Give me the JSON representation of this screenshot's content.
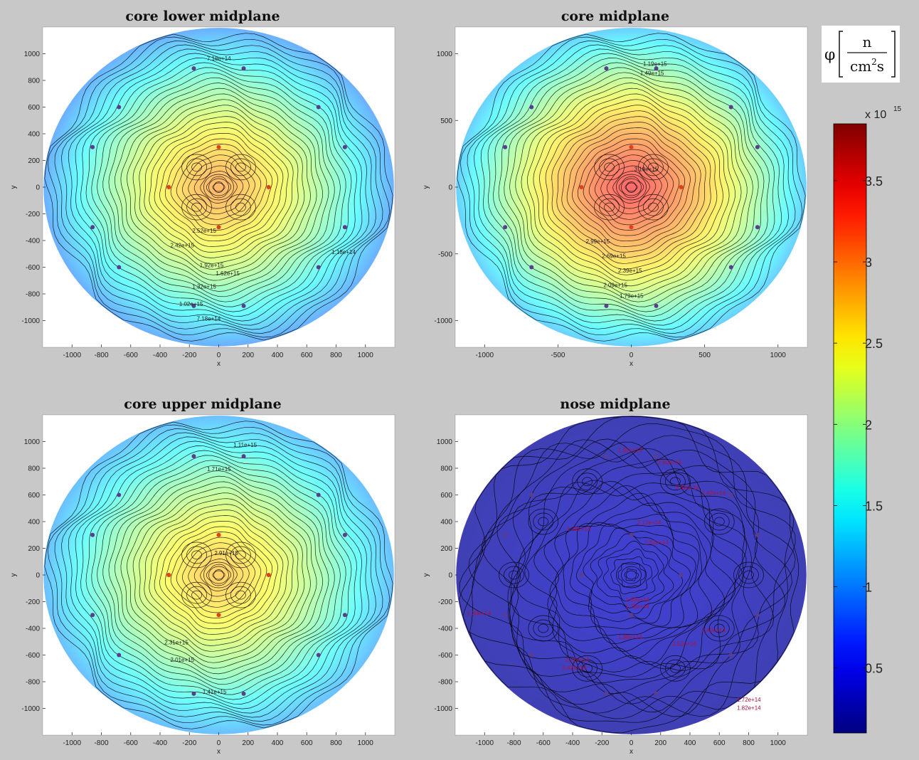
{
  "chart_data": [
    {
      "type": "heatmap",
      "title": "core lower midplane",
      "xlabel": "x",
      "ylabel": "y",
      "xlim": [
        -1200,
        1200
      ],
      "ylim": [
        -1200,
        1200
      ],
      "xticks": [
        -1000,
        -800,
        -600,
        -400,
        -200,
        0,
        200,
        400,
        600,
        800,
        1000
      ],
      "yticks": [
        -1000,
        -800,
        -600,
        -400,
        -200,
        0,
        200,
        400,
        600,
        800,
        1000
      ],
      "peak": 2.9,
      "edge": 1.0,
      "contour_labels": [
        {
          "text": "7.18e+14",
          "x": -80,
          "y": 950
        },
        {
          "text": "2.52e+15",
          "x": -180,
          "y": -340
        },
        {
          "text": "2.42e+15",
          "x": -330,
          "y": -450
        },
        {
          "text": "1.92e+15",
          "x": -130,
          "y": -600
        },
        {
          "text": "1.62e+15",
          "x": -20,
          "y": -660
        },
        {
          "text": "1.32e+15",
          "x": -180,
          "y": -760
        },
        {
          "text": "1.02e+15",
          "x": -270,
          "y": -890
        },
        {
          "text": "7.18e+14",
          "x": -150,
          "y": -1000
        },
        {
          "text": "1.18e+14",
          "x": 770,
          "y": -500
        }
      ],
      "points": [
        {
          "x": -170,
          "y": 890,
          "v": "low"
        },
        {
          "x": 170,
          "y": 890,
          "v": "low"
        },
        {
          "x": -680,
          "y": 600,
          "v": "low"
        },
        {
          "x": 680,
          "y": 600,
          "v": "low"
        },
        {
          "x": -860,
          "y": 300,
          "v": "low"
        },
        {
          "x": 860,
          "y": 300,
          "v": "low"
        },
        {
          "x": -860,
          "y": -300,
          "v": "low"
        },
        {
          "x": 860,
          "y": -300,
          "v": "low"
        },
        {
          "x": -680,
          "y": -600,
          "v": "low"
        },
        {
          "x": 680,
          "y": -600,
          "v": "low"
        },
        {
          "x": -170,
          "y": -890,
          "v": "low"
        },
        {
          "x": 170,
          "y": -890,
          "v": "low"
        },
        {
          "x": 0,
          "y": 300,
          "v": "high"
        },
        {
          "x": -340,
          "y": 0,
          "v": "high"
        },
        {
          "x": 340,
          "y": 0,
          "v": "high"
        },
        {
          "x": 0,
          "y": -300,
          "v": "high"
        }
      ]
    },
    {
      "type": "heatmap",
      "title": "core midplane",
      "xlabel": "x",
      "ylabel": "y",
      "xlim": [
        -1200,
        1200
      ],
      "ylim": [
        -1200,
        1200
      ],
      "xticks": [
        -1000,
        -500,
        0,
        500,
        1000
      ],
      "yticks": [
        -1000,
        -500,
        0,
        500,
        1000
      ],
      "peak": 3.4,
      "edge": 1.2,
      "contour_labels": [
        {
          "text": "1.19e+15",
          "x": 80,
          "y": 910
        },
        {
          "text": "1.49e+15",
          "x": 60,
          "y": 840
        },
        {
          "text": "3.19e+15",
          "x": 20,
          "y": 120
        },
        {
          "text": "2.99e+15",
          "x": -310,
          "y": -420
        },
        {
          "text": "2.69e+15",
          "x": -200,
          "y": -530
        },
        {
          "text": "2.39e+15",
          "x": -90,
          "y": -640
        },
        {
          "text": "2.09e+15",
          "x": -190,
          "y": -750
        },
        {
          "text": "1.79e+15",
          "x": -80,
          "y": -830
        }
      ],
      "points": [
        {
          "x": -170,
          "y": 890,
          "v": "low"
        },
        {
          "x": 170,
          "y": 890,
          "v": "low"
        },
        {
          "x": -680,
          "y": 600,
          "v": "low"
        },
        {
          "x": 680,
          "y": 600,
          "v": "low"
        },
        {
          "x": -860,
          "y": 300,
          "v": "low"
        },
        {
          "x": 860,
          "y": 300,
          "v": "low"
        },
        {
          "x": -860,
          "y": -300,
          "v": "low"
        },
        {
          "x": 860,
          "y": -300,
          "v": "low"
        },
        {
          "x": -680,
          "y": -600,
          "v": "low"
        },
        {
          "x": 680,
          "y": -600,
          "v": "low"
        },
        {
          "x": -170,
          "y": -890,
          "v": "low"
        },
        {
          "x": 170,
          "y": -890,
          "v": "low"
        },
        {
          "x": 0,
          "y": 300,
          "v": "high"
        },
        {
          "x": -340,
          "y": 0,
          "v": "high"
        },
        {
          "x": 340,
          "y": 0,
          "v": "high"
        },
        {
          "x": 0,
          "y": -300,
          "v": "high"
        }
      ]
    },
    {
      "type": "heatmap",
      "title": "core upper midplane",
      "xlabel": "x",
      "ylabel": "y",
      "xlim": [
        -1200,
        1200
      ],
      "ylim": [
        -1200,
        1200
      ],
      "xticks": [
        -1000,
        -800,
        -600,
        -400,
        -200,
        0,
        200,
        400,
        600,
        800,
        1000
      ],
      "yticks": [
        -1000,
        -800,
        -600,
        -400,
        -200,
        0,
        200,
        400,
        600,
        800,
        1000
      ],
      "peak": 2.75,
      "edge": 1.1,
      "contour_labels": [
        {
          "text": "1.11e+15",
          "x": 100,
          "y": 960
        },
        {
          "text": "1.71e+15",
          "x": -80,
          "y": 780
        },
        {
          "text": "2.91e+15",
          "x": -30,
          "y": 150
        },
        {
          "text": "2.31e+15",
          "x": -370,
          "y": -520
        },
        {
          "text": "2.01e+15",
          "x": -330,
          "y": -650
        },
        {
          "text": "1.41e+15",
          "x": -110,
          "y": -890
        }
      ],
      "points": [
        {
          "x": -170,
          "y": 890,
          "v": "low"
        },
        {
          "x": 170,
          "y": 890,
          "v": "low"
        },
        {
          "x": -680,
          "y": 600,
          "v": "low"
        },
        {
          "x": 680,
          "y": 600,
          "v": "low"
        },
        {
          "x": -860,
          "y": 300,
          "v": "low"
        },
        {
          "x": 860,
          "y": 300,
          "v": "low"
        },
        {
          "x": -860,
          "y": -300,
          "v": "low"
        },
        {
          "x": 860,
          "y": -300,
          "v": "low"
        },
        {
          "x": -680,
          "y": -600,
          "v": "low"
        },
        {
          "x": 680,
          "y": -600,
          "v": "low"
        },
        {
          "x": -170,
          "y": -890,
          "v": "low"
        },
        {
          "x": 170,
          "y": -890,
          "v": "low"
        },
        {
          "x": 0,
          "y": 300,
          "v": "high"
        },
        {
          "x": -340,
          "y": 0,
          "v": "high"
        },
        {
          "x": 340,
          "y": 0,
          "v": "high"
        },
        {
          "x": 0,
          "y": -300,
          "v": "high"
        }
      ]
    },
    {
      "type": "heatmap",
      "title": "nose midplane",
      "xlabel": "x",
      "ylabel": "y",
      "xlim": [
        -1200,
        1200
      ],
      "ylim": [
        -1200,
        1200
      ],
      "xticks": [
        -1000,
        -800,
        -600,
        -400,
        -200,
        0,
        200,
        400,
        600,
        800,
        1000
      ],
      "yticks": [
        -1000,
        -800,
        -600,
        -400,
        -200,
        0,
        200,
        400,
        600,
        800,
        1000
      ],
      "peak": 0.35,
      "edge": 0.2,
      "contour_labels": [
        {
          "text": "1.92e+14",
          "x": -90,
          "y": 920
        },
        {
          "text": "2.62e+14",
          "x": 180,
          "y": 830
        },
        {
          "text": "2.32e+14",
          "x": 300,
          "y": 640
        },
        {
          "text": "2.42e+14",
          "x": 480,
          "y": 600
        },
        {
          "text": "1.32e+14",
          "x": -440,
          "y": 330
        },
        {
          "text": "2.12e+14",
          "x": 40,
          "y": 380
        },
        {
          "text": "1.62e+14",
          "x": 90,
          "y": 230
        },
        {
          "text": "1.68e+14",
          "x": -40,
          "y": -200
        },
        {
          "text": "1.79e+14",
          "x": -40,
          "y": -250
        },
        {
          "text": "1.38e+14",
          "x": -1120,
          "y": -300
        },
        {
          "text": "1.88e+14",
          "x": -90,
          "y": -480
        },
        {
          "text": "2.52e+14",
          "x": 280,
          "y": -530
        },
        {
          "text": "2.42e+14",
          "x": 480,
          "y": -430
        },
        {
          "text": "2.72e+14",
          "x": -450,
          "y": -650
        },
        {
          "text": "2.42e+14",
          "x": -470,
          "y": -710
        },
        {
          "text": "1.72e+14",
          "x": 720,
          "y": -950
        },
        {
          "text": "1.82e+14",
          "x": 720,
          "y": -1010
        }
      ],
      "points": [
        {
          "x": -170,
          "y": 890,
          "v": "low"
        },
        {
          "x": 170,
          "y": 890,
          "v": "low"
        },
        {
          "x": -680,
          "y": 600,
          "v": "low"
        },
        {
          "x": 680,
          "y": 600,
          "v": "low"
        },
        {
          "x": -860,
          "y": 300,
          "v": "low"
        },
        {
          "x": 860,
          "y": 300,
          "v": "low"
        },
        {
          "x": -860,
          "y": -300,
          "v": "low"
        },
        {
          "x": 860,
          "y": -300,
          "v": "low"
        },
        {
          "x": -680,
          "y": -600,
          "v": "low"
        },
        {
          "x": 680,
          "y": -600,
          "v": "low"
        },
        {
          "x": -170,
          "y": -890,
          "v": "low"
        },
        {
          "x": 170,
          "y": -890,
          "v": "low"
        },
        {
          "x": 0,
          "y": 300,
          "v": "low"
        },
        {
          "x": -340,
          "y": 0,
          "v": "low"
        },
        {
          "x": 340,
          "y": 0,
          "v": "low"
        },
        {
          "x": 0,
          "y": -300,
          "v": "low"
        }
      ]
    }
  ],
  "colorbar": {
    "unit_symbol": "φ",
    "unit_numerator": "n",
    "unit_denominator_base": "cm",
    "unit_denominator_exp": "2",
    "unit_denominator_tail": "s",
    "exponent_base": "x 10",
    "exponent_power": "15",
    "range": [
      0.1,
      3.85
    ],
    "ticks": [
      0.5,
      1,
      1.5,
      2,
      2.5,
      3,
      3.5
    ],
    "tick_labels": [
      "0.5",
      "1",
      "1.5",
      "2",
      "2.5",
      "3",
      "3.5"
    ]
  },
  "colors": {
    "background": "#c8c8c8",
    "plot_bg": "#ffffff",
    "contour": "#000000",
    "point_low": "#5a3d8c",
    "point_high": "#e0401a"
  }
}
